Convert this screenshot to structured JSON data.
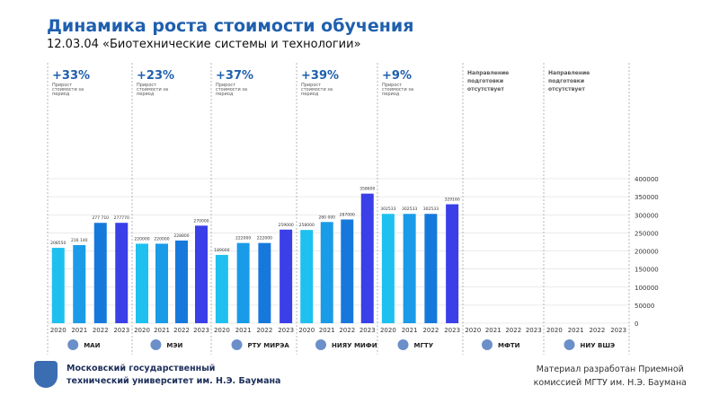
{
  "header": {
    "title": "Динамика роста стоимости обучения",
    "subtitle": "12.03.04 «Биотехнические системы и технологии»"
  },
  "colors": {
    "title": "#1f5fae",
    "bars": [
      "#1ec0f0",
      "#1a9be8",
      "#1778dc",
      "#3a3fe8"
    ],
    "growth": "#1f5fae"
  },
  "footer": {
    "org": [
      "Московский государственный",
      "технический университет им. Н.Э. Баумана"
    ],
    "credit": [
      "Материал разработан Приемной",
      "комиссией МГТУ им. Н.Э. Баумана"
    ]
  },
  "chart_data": {
    "type": "bar",
    "categories": [
      "2020",
      "2021",
      "2022",
      "2023"
    ],
    "ylim": [
      0,
      400000
    ],
    "yticks": [
      "0",
      "50000",
      "100000",
      "150000",
      "200000",
      "250000",
      "300000",
      "350000",
      "400000"
    ],
    "grid": true,
    "growth_caption": "Прирост стоимости за период",
    "missing_caption": "Направление подготовки отсутствует",
    "groups": [
      {
        "name": "МАИ",
        "growth": "+33%",
        "values": [
          208550,
          216140,
          277710,
          277770
        ],
        "labels": [
          "208550",
          "216 140",
          "277 710",
          "277770"
        ]
      },
      {
        "name": "МЭИ",
        "growth": "+23%",
        "values": [
          220000,
          220000,
          228800,
          270000
        ],
        "labels": [
          "220000",
          "220000",
          "228800",
          "270000"
        ]
      },
      {
        "name": "РТУ МИРЭА",
        "growth": "+37%",
        "values": [
          189000,
          222000,
          222000,
          259000
        ],
        "labels": [
          "189000",
          "222000",
          "222000",
          "259000"
        ]
      },
      {
        "name": "НИЯУ МИФИ",
        "growth": "+39%",
        "values": [
          258000,
          280000,
          287000,
          358600
        ],
        "labels": [
          "258000",
          "280 000",
          "287000",
          "358600"
        ]
      },
      {
        "name": "МГТУ",
        "growth": "+9%",
        "values": [
          302533,
          302533,
          302533,
          329160
        ],
        "labels": [
          "302533",
          "302533",
          "302533",
          "329160"
        ]
      },
      {
        "name": "МФТИ",
        "growth": null,
        "values": [],
        "labels": []
      },
      {
        "name": "НИУ ВШЭ",
        "growth": null,
        "values": [],
        "labels": []
      }
    ]
  }
}
